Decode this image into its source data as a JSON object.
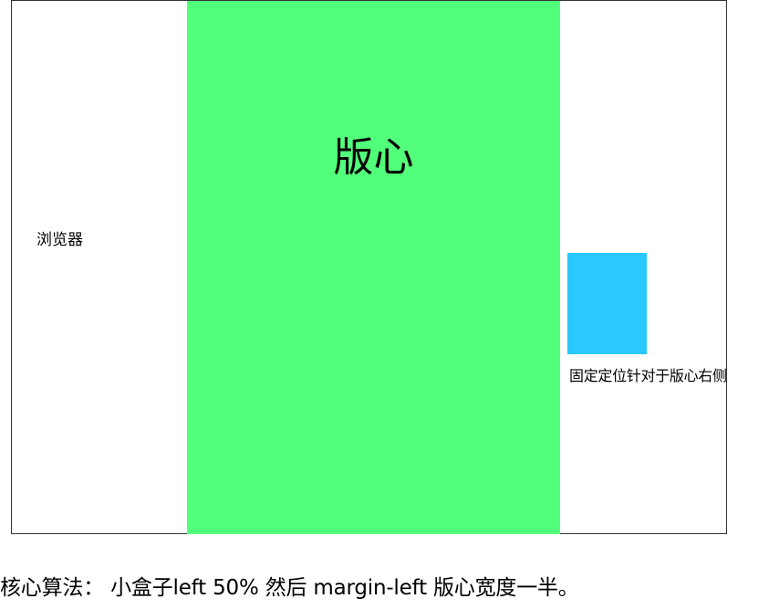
{
  "browser": {
    "label": "浏览器"
  },
  "center": {
    "label": "版心",
    "color": "#52ff7a"
  },
  "fixed_box": {
    "caption": "固定定位针对于版心右侧",
    "color": "#29c8ff"
  },
  "formula": {
    "text": "核心算法： 小盒子left 50%   然后 margin-left  版心宽度一半。"
  }
}
